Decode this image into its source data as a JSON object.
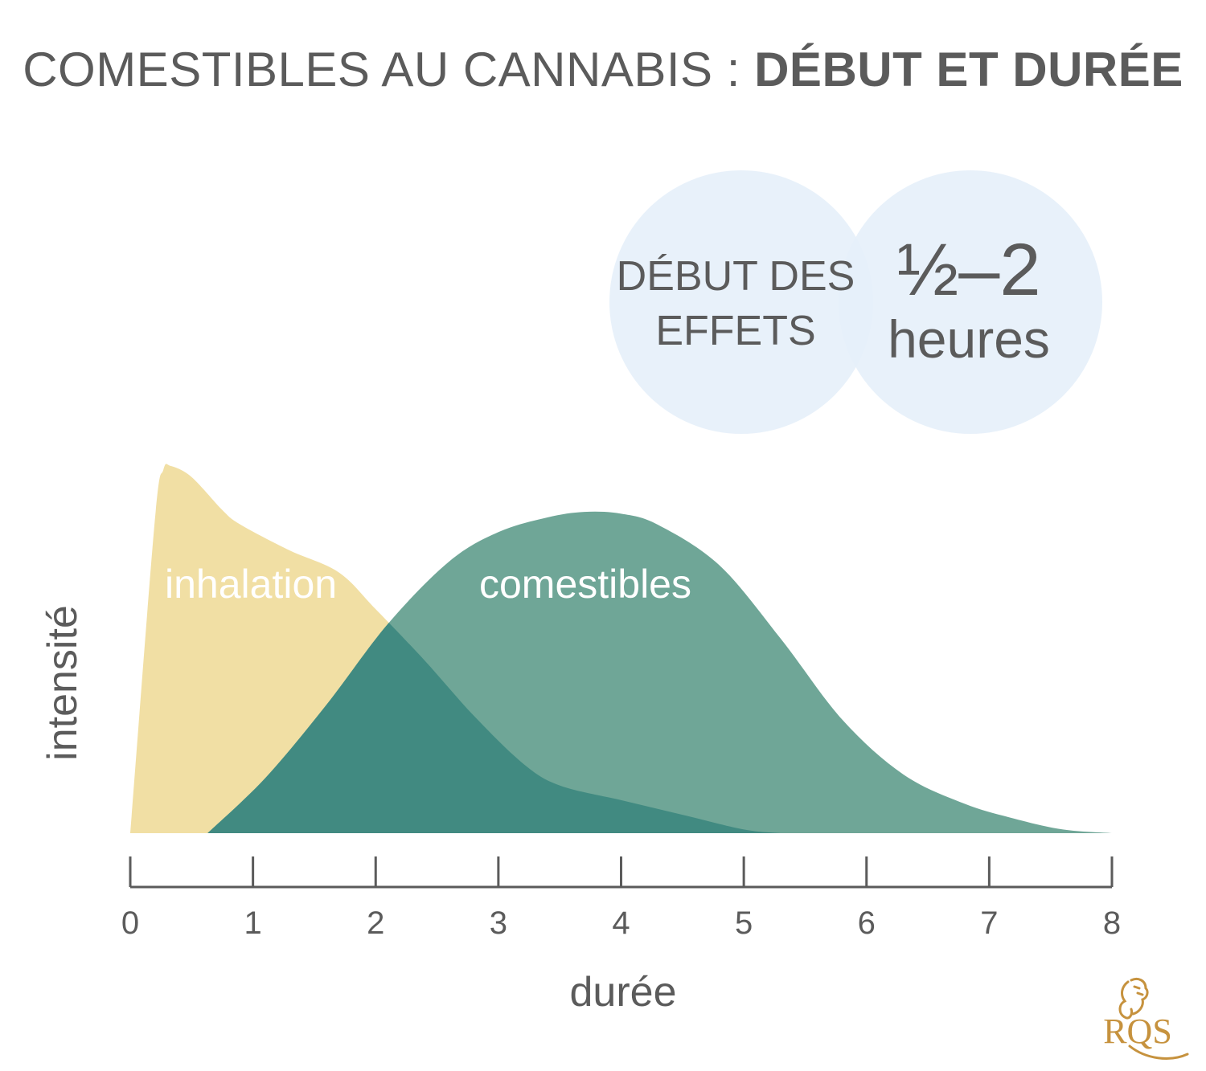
{
  "title": {
    "part1": "COMESTIBLES AU CANNABIS : ",
    "part2": "DÉBUT ET DURÉE"
  },
  "badge": {
    "line1": "DÉBUT DES",
    "line2": "EFFETS",
    "range": "½–2",
    "unit": "heures"
  },
  "logo_text": "RQS",
  "colors": {
    "text": "#5b5b5b",
    "inhalation": "#f1dfa4",
    "edibles": "#6fa697",
    "overlap": "#418a81",
    "circle": "#e6eff9",
    "logo": "#c6923e"
  },
  "chart_data": {
    "type": "area",
    "title": "COMESTIBLES AU CANNABIS : DÉBUT ET DURÉE",
    "xlabel": "durée",
    "ylabel": "intensité",
    "xlim": [
      0,
      8
    ],
    "ylim": [
      0,
      1
    ],
    "x_ticks": [
      "0",
      "1",
      "2",
      "3",
      "4",
      "5",
      "6",
      "7",
      "8"
    ],
    "y_ticks": [],
    "grid": false,
    "series": [
      {
        "name": "inhalation",
        "points": [
          [
            0,
            0
          ],
          [
            0.2,
            0.85
          ],
          [
            0.27,
            0.99
          ],
          [
            0.33,
            1.0
          ],
          [
            0.5,
            0.97
          ],
          [
            0.75,
            0.88
          ],
          [
            0.9,
            0.84
          ],
          [
            1.3,
            0.77
          ],
          [
            1.7,
            0.71
          ],
          [
            2.0,
            0.61
          ],
          [
            2.4,
            0.47
          ],
          [
            2.8,
            0.32
          ],
          [
            3.2,
            0.19
          ],
          [
            3.5,
            0.13
          ],
          [
            4.0,
            0.09
          ],
          [
            4.5,
            0.05
          ],
          [
            5.0,
            0.01
          ],
          [
            5.3,
            0
          ]
        ]
      },
      {
        "name": "comestibles",
        "points": [
          [
            0.63,
            0
          ],
          [
            1.1,
            0.15
          ],
          [
            1.6,
            0.35
          ],
          [
            2.1,
            0.57
          ],
          [
            2.6,
            0.74
          ],
          [
            3.0,
            0.82
          ],
          [
            3.4,
            0.86
          ],
          [
            3.7,
            0.875
          ],
          [
            4.0,
            0.87
          ],
          [
            4.3,
            0.84
          ],
          [
            4.8,
            0.73
          ],
          [
            5.3,
            0.53
          ],
          [
            5.8,
            0.31
          ],
          [
            6.3,
            0.16
          ],
          [
            6.8,
            0.08
          ],
          [
            7.2,
            0.04
          ],
          [
            7.6,
            0.01
          ],
          [
            8.0,
            0
          ]
        ]
      }
    ]
  }
}
